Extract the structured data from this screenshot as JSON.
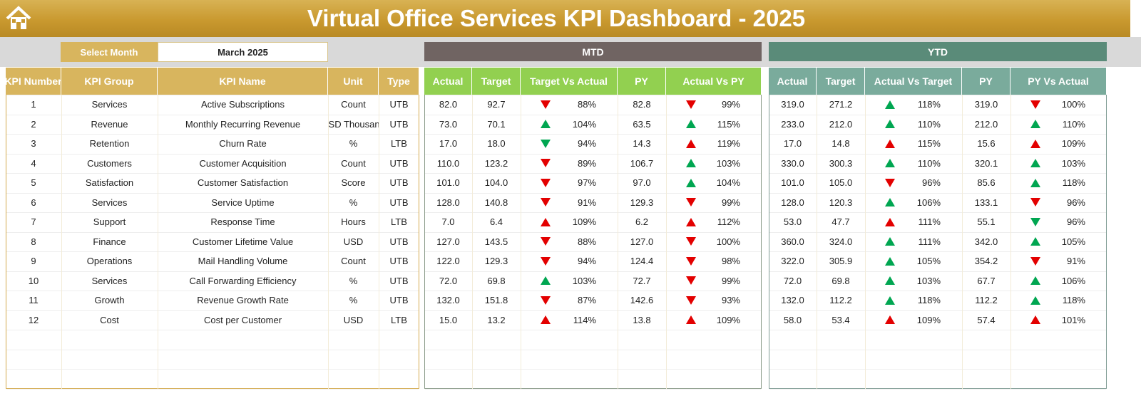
{
  "header": {
    "title": "Virtual Office Services KPI Dashboard - 2025"
  },
  "month_selector": {
    "label": "Select Month",
    "value": "March 2025"
  },
  "kpi_table": {
    "columns": [
      "KPI Number",
      "KPI Group",
      "KPI Name",
      "Unit",
      "Type"
    ]
  },
  "mtd": {
    "title": "MTD",
    "columns": [
      "Actual",
      "Target",
      "Target Vs Actual",
      "PY",
      "Actual Vs PY"
    ]
  },
  "ytd": {
    "title": "YTD",
    "columns": [
      "Actual",
      "Target",
      "Actual Vs Target",
      "PY",
      "PY Vs Actual"
    ]
  },
  "rows": [
    {
      "kpi": [
        "1",
        "Services",
        "Active Subscriptions",
        "Count",
        "UTB"
      ],
      "mtd": [
        "82.0",
        "92.7",
        "88%",
        "82.8",
        "99%"
      ],
      "mtd_arrows": [
        "down-red",
        "down-red"
      ],
      "ytd": [
        "319.0",
        "271.2",
        "118%",
        "319.0",
        "100%"
      ],
      "ytd_arrows": [
        "up-green",
        "down-red"
      ]
    },
    {
      "kpi": [
        "2",
        "Revenue",
        "Monthly Recurring Revenue",
        "USD Thousand",
        "UTB"
      ],
      "mtd": [
        "73.0",
        "70.1",
        "104%",
        "63.5",
        "115%"
      ],
      "mtd_arrows": [
        "up-green",
        "up-green"
      ],
      "ytd": [
        "233.0",
        "212.0",
        "110%",
        "212.0",
        "110%"
      ],
      "ytd_arrows": [
        "up-green",
        "up-green"
      ]
    },
    {
      "kpi": [
        "3",
        "Retention",
        "Churn Rate",
        "%",
        "LTB"
      ],
      "mtd": [
        "17.0",
        "18.0",
        "94%",
        "14.3",
        "119%"
      ],
      "mtd_arrows": [
        "down-green",
        "up-red"
      ],
      "ytd": [
        "17.0",
        "14.8",
        "115%",
        "15.6",
        "109%"
      ],
      "ytd_arrows": [
        "up-red",
        "up-red"
      ]
    },
    {
      "kpi": [
        "4",
        "Customers",
        "Customer Acquisition",
        "Count",
        "UTB"
      ],
      "mtd": [
        "110.0",
        "123.2",
        "89%",
        "106.7",
        "103%"
      ],
      "mtd_arrows": [
        "down-red",
        "up-green"
      ],
      "ytd": [
        "330.0",
        "300.3",
        "110%",
        "320.1",
        "103%"
      ],
      "ytd_arrows": [
        "up-green",
        "up-green"
      ]
    },
    {
      "kpi": [
        "5",
        "Satisfaction",
        "Customer Satisfaction",
        "Score",
        "UTB"
      ],
      "mtd": [
        "101.0",
        "104.0",
        "97%",
        "97.0",
        "104%"
      ],
      "mtd_arrows": [
        "down-red",
        "up-green"
      ],
      "ytd": [
        "101.0",
        "105.0",
        "96%",
        "85.6",
        "118%"
      ],
      "ytd_arrows": [
        "down-red",
        "up-green"
      ]
    },
    {
      "kpi": [
        "6",
        "Services",
        "Service Uptime",
        "%",
        "UTB"
      ],
      "mtd": [
        "128.0",
        "140.8",
        "91%",
        "129.3",
        "99%"
      ],
      "mtd_arrows": [
        "down-red",
        "down-red"
      ],
      "ytd": [
        "128.0",
        "120.3",
        "106%",
        "133.1",
        "96%"
      ],
      "ytd_arrows": [
        "up-green",
        "down-red"
      ]
    },
    {
      "kpi": [
        "7",
        "Support",
        "Response Time",
        "Hours",
        "LTB"
      ],
      "mtd": [
        "7.0",
        "6.4",
        "109%",
        "6.2",
        "112%"
      ],
      "mtd_arrows": [
        "up-red",
        "up-red"
      ],
      "ytd": [
        "53.0",
        "47.7",
        "111%",
        "55.1",
        "96%"
      ],
      "ytd_arrows": [
        "up-red",
        "down-green"
      ]
    },
    {
      "kpi": [
        "8",
        "Finance",
        "Customer Lifetime Value",
        "USD",
        "UTB"
      ],
      "mtd": [
        "127.0",
        "143.5",
        "88%",
        "127.0",
        "100%"
      ],
      "mtd_arrows": [
        "down-red",
        "down-red"
      ],
      "ytd": [
        "360.0",
        "324.0",
        "111%",
        "342.0",
        "105%"
      ],
      "ytd_arrows": [
        "up-green",
        "up-green"
      ]
    },
    {
      "kpi": [
        "9",
        "Operations",
        "Mail Handling Volume",
        "Count",
        "UTB"
      ],
      "mtd": [
        "122.0",
        "129.3",
        "94%",
        "124.4",
        "98%"
      ],
      "mtd_arrows": [
        "down-red",
        "down-red"
      ],
      "ytd": [
        "322.0",
        "305.9",
        "105%",
        "354.2",
        "91%"
      ],
      "ytd_arrows": [
        "up-green",
        "down-red"
      ]
    },
    {
      "kpi": [
        "10",
        "Services",
        "Call Forwarding Efficiency",
        "%",
        "UTB"
      ],
      "mtd": [
        "72.0",
        "69.8",
        "103%",
        "72.7",
        "99%"
      ],
      "mtd_arrows": [
        "up-green",
        "down-red"
      ],
      "ytd": [
        "72.0",
        "69.8",
        "103%",
        "67.7",
        "106%"
      ],
      "ytd_arrows": [
        "up-green",
        "up-green"
      ]
    },
    {
      "kpi": [
        "11",
        "Growth",
        "Revenue Growth Rate",
        "%",
        "UTB"
      ],
      "mtd": [
        "132.0",
        "151.8",
        "87%",
        "142.6",
        "93%"
      ],
      "mtd_arrows": [
        "down-red",
        "down-red"
      ],
      "ytd": [
        "132.0",
        "112.2",
        "118%",
        "112.2",
        "118%"
      ],
      "ytd_arrows": [
        "up-green",
        "up-green"
      ]
    },
    {
      "kpi": [
        "12",
        "Cost",
        "Cost per Customer",
        "USD",
        "LTB"
      ],
      "mtd": [
        "15.0",
        "13.2",
        "114%",
        "13.8",
        "109%"
      ],
      "mtd_arrows": [
        "up-red",
        "up-red"
      ],
      "ytd": [
        "58.0",
        "53.4",
        "109%",
        "57.4",
        "101%"
      ],
      "ytd_arrows": [
        "up-red",
        "up-red"
      ]
    }
  ]
}
